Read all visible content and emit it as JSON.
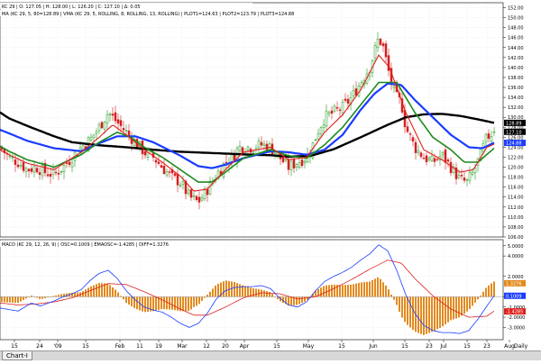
{
  "price_header": "KC 29 | O: 127.05 | H: 128.00 | L: 126.20 | C: 127.10 | Δ: 0.05",
  "ma_header": "MA (KC 29, 5, 80=128.89 | VMA (KC 29, 5, ROLLING, 8, ROLLING, 13, ROLLING) | PLOT1=124.63 | PLOT2=123.79 | PLOT3=124.88",
  "macd_header": "MACD (KC 29, 12, 26, 9) | OSC=0.1009 | EMAOSC=-1.4285 | DIFF=1.3276",
  "daily_label": "Daily",
  "tab_label": "Chart-I",
  "price_axis": {
    "ticks": [
      "152.00",
      "150.00",
      "148.00",
      "146.00",
      "144.00",
      "142.00",
      "140.00",
      "138.00",
      "136.00",
      "134.00",
      "132.00",
      "130.00",
      "128.00",
      "126.00",
      "124.00",
      "122.00",
      "120.00",
      "118.00",
      "116.00",
      "114.00",
      "112.00",
      "110.00",
      "108.00",
      "106.00"
    ],
    "badges": [
      {
        "text": "128.89",
        "color": "#000000"
      },
      {
        "text": "127.10",
        "color": "#000000"
      },
      {
        "text": "124.88",
        "color": "#1a3cff"
      }
    ]
  },
  "macd_axis": {
    "ticks": [
      "5.0000",
      "4.0000",
      "2.0000",
      "0.0000",
      "-1.0000",
      "-2.0000",
      "-3.0000"
    ],
    "badges": [
      {
        "text": "1.3276",
        "color": "#e38a1e"
      },
      {
        "text": "0.1009",
        "color": "#1a3cff"
      },
      {
        "text": "-1.4285",
        "color": "#e0201c"
      }
    ]
  },
  "x_labels": [
    "15",
    "24",
    "'09",
    "15",
    "Feb",
    "11",
    "19",
    "Mar",
    "12",
    "20",
    "Apr",
    "15",
    "May",
    "15",
    "Jun",
    "15",
    "23",
    "Jul",
    "15",
    "23",
    "Aug"
  ],
  "chart_data": [
    {
      "type": "candlestick",
      "ylim": [
        106,
        153
      ],
      "grid": true,
      "colors": {
        "up": "#1e9a1e",
        "down": "#d42020",
        "sma80": "#000000",
        "ma_fast": "#e0201c",
        "ma_mid": "#1e8a1e",
        "ma_slow": "#1a3cff"
      },
      "anchors": {
        "close": [
          [
            0,
            124
          ],
          [
            10,
            122
          ],
          [
            20,
            121
          ],
          [
            30,
            119.5
          ],
          [
            40,
            120
          ],
          [
            50,
            119
          ],
          [
            60,
            118.5
          ],
          [
            70,
            120
          ],
          [
            80,
            122
          ],
          [
            90,
            124
          ],
          [
            100,
            125.5
          ],
          [
            110,
            128
          ],
          [
            120,
            131
          ],
          [
            130,
            129
          ],
          [
            140,
            127
          ],
          [
            150,
            125
          ],
          [
            160,
            123
          ],
          [
            170,
            122
          ],
          [
            180,
            120
          ],
          [
            190,
            118
          ],
          [
            200,
            117
          ],
          [
            210,
            114
          ],
          [
            220,
            113
          ],
          [
            228,
            115
          ],
          [
            235,
            117
          ],
          [
            242,
            119
          ],
          [
            250,
            121
          ],
          [
            258,
            122
          ],
          [
            265,
            124
          ],
          [
            272,
            124
          ],
          [
            280,
            124
          ],
          [
            290,
            124.5
          ],
          [
            300,
            124
          ],
          [
            310,
            122
          ],
          [
            320,
            120
          ],
          [
            330,
            121
          ],
          [
            340,
            122
          ],
          [
            346,
            124
          ],
          [
            352,
            127
          ],
          [
            360,
            130
          ],
          [
            370,
            131
          ],
          [
            380,
            132
          ],
          [
            390,
            134
          ],
          [
            400,
            137
          ],
          [
            410,
            140
          ],
          [
            415,
            143
          ],
          [
            420,
            146
          ],
          [
            425,
            144
          ],
          [
            430,
            140
          ],
          [
            435,
            136
          ],
          [
            440,
            134
          ],
          [
            445,
            133
          ],
          [
            450,
            128
          ],
          [
            455,
            126
          ],
          [
            460,
            124
          ],
          [
            470,
            122
          ],
          [
            480,
            121
          ],
          [
            490,
            122.5
          ],
          [
            500,
            120
          ],
          [
            510,
            117.5
          ],
          [
            518,
            117
          ],
          [
            525,
            119
          ],
          [
            532,
            122
          ],
          [
            540,
            126
          ],
          [
            548,
            127.1
          ]
        ],
        "sma80": [
          [
            0,
            131
          ],
          [
            10,
            129.8
          ],
          [
            30,
            128.3
          ],
          [
            60,
            126.2
          ],
          [
            80,
            125
          ],
          [
            110,
            124.4
          ],
          [
            140,
            124
          ],
          [
            170,
            123.5
          ],
          [
            200,
            123.1
          ],
          [
            240,
            122.8
          ],
          [
            280,
            122.5
          ],
          [
            300,
            122.4
          ],
          [
            320,
            122.1
          ],
          [
            345,
            122.3
          ],
          [
            370,
            123.6
          ],
          [
            400,
            126
          ],
          [
            430,
            128.5
          ],
          [
            450,
            130
          ],
          [
            470,
            130.6
          ],
          [
            490,
            130.7
          ],
          [
            510,
            130.3
          ],
          [
            530,
            129.6
          ],
          [
            548,
            128.9
          ]
        ],
        "ma_fast": [
          [
            0,
            123.5
          ],
          [
            10,
            122.5
          ],
          [
            30,
            120.8
          ],
          [
            60,
            119.5
          ],
          [
            90,
            123
          ],
          [
            110,
            126
          ],
          [
            125,
            128.5
          ],
          [
            140,
            126.5
          ],
          [
            160,
            123.5
          ],
          [
            180,
            121
          ],
          [
            200,
            118.2
          ],
          [
            215,
            115.2
          ],
          [
            230,
            115.6
          ],
          [
            250,
            119.5
          ],
          [
            270,
            123
          ],
          [
            300,
            124
          ],
          [
            320,
            121.5
          ],
          [
            340,
            122
          ],
          [
            360,
            127
          ],
          [
            380,
            130.5
          ],
          [
            400,
            135.5
          ],
          [
            420,
            142.5
          ],
          [
            432,
            140
          ],
          [
            450,
            131
          ],
          [
            470,
            123.5
          ],
          [
            490,
            121.5
          ],
          [
            510,
            119
          ],
          [
            525,
            119.5
          ],
          [
            540,
            124
          ],
          [
            548,
            124.6
          ]
        ],
        "ma_mid": [
          [
            0,
            124.2
          ],
          [
            10,
            123.2
          ],
          [
            30,
            121.5
          ],
          [
            60,
            120
          ],
          [
            90,
            122.5
          ],
          [
            110,
            125
          ],
          [
            130,
            127
          ],
          [
            145,
            126
          ],
          [
            160,
            124
          ],
          [
            180,
            122
          ],
          [
            200,
            119.5
          ],
          [
            220,
            117
          ],
          [
            235,
            117
          ],
          [
            250,
            119
          ],
          [
            270,
            121.8
          ],
          [
            300,
            123.5
          ],
          [
            320,
            122.3
          ],
          [
            340,
            121.8
          ],
          [
            360,
            124.5
          ],
          [
            380,
            128
          ],
          [
            400,
            132.5
          ],
          [
            420,
            137
          ],
          [
            440,
            137
          ],
          [
            460,
            131
          ],
          [
            480,
            126
          ],
          [
            500,
            123.5
          ],
          [
            515,
            121
          ],
          [
            530,
            121
          ],
          [
            548,
            123.8
          ]
        ],
        "ma_slow": [
          [
            0,
            127.5
          ],
          [
            10,
            126.8
          ],
          [
            30,
            125.3
          ],
          [
            60,
            123.8
          ],
          [
            90,
            123.2
          ],
          [
            110,
            124.8
          ],
          [
            130,
            126.2
          ],
          [
            150,
            126.2
          ],
          [
            170,
            125
          ],
          [
            200,
            122.3
          ],
          [
            220,
            120.2
          ],
          [
            235,
            119.8
          ],
          [
            250,
            120.5
          ],
          [
            270,
            121.8
          ],
          [
            300,
            123.2
          ],
          [
            320,
            123
          ],
          [
            340,
            122.5
          ],
          [
            360,
            123.5
          ],
          [
            380,
            126.5
          ],
          [
            400,
            131.5
          ],
          [
            415,
            134.7
          ],
          [
            430,
            136.8
          ],
          [
            445,
            136.5
          ],
          [
            460,
            133.5
          ],
          [
            480,
            130
          ],
          [
            500,
            126.5
          ],
          [
            520,
            124
          ],
          [
            535,
            123.8
          ],
          [
            548,
            124.9
          ]
        ]
      },
      "last": {
        "open": 127.05,
        "high": 128.0,
        "low": 126.2,
        "close": 127.1,
        "change": 0.05
      },
      "overlays": [
        {
          "label": "MA (KC 29, 5, 80)",
          "value": 128.89
        },
        {
          "label": "PLOT1",
          "value": 124.63
        },
        {
          "label": "PLOT2",
          "value": 123.79
        },
        {
          "label": "PLOT3",
          "value": 124.88
        }
      ]
    },
    {
      "type": "macd",
      "ylim": [
        -4.2,
        5.6
      ],
      "colors": {
        "osc": "#1a3cff",
        "ema": "#e0201c",
        "hist": "#e38a1e"
      },
      "osc": [
        [
          0,
          -1.1
        ],
        [
          20,
          -1.4
        ],
        [
          35,
          -0.6
        ],
        [
          45,
          -0.9
        ],
        [
          60,
          -0.4
        ],
        [
          70,
          0.0
        ],
        [
          80,
          0.3
        ],
        [
          90,
          0.7
        ],
        [
          100,
          1.6
        ],
        [
          110,
          2.3
        ],
        [
          120,
          2.6
        ],
        [
          130,
          1.8
        ],
        [
          140,
          0.6
        ],
        [
          150,
          -0.3
        ],
        [
          160,
          -1.0
        ],
        [
          170,
          -1.3
        ],
        [
          180,
          -1.5
        ],
        [
          190,
          -2.0
        ],
        [
          200,
          -2.6
        ],
        [
          210,
          -3.0
        ],
        [
          220,
          -2.6
        ],
        [
          230,
          -1.6
        ],
        [
          240,
          -0.2
        ],
        [
          250,
          0.6
        ],
        [
          260,
          0.9
        ],
        [
          270,
          1.0
        ],
        [
          280,
          1.0
        ],
        [
          290,
          1.1
        ],
        [
          300,
          0.8
        ],
        [
          310,
          -0.1
        ],
        [
          320,
          -0.8
        ],
        [
          330,
          -1.0
        ],
        [
          340,
          -0.5
        ],
        [
          350,
          0.6
        ],
        [
          360,
          1.5
        ],
        [
          370,
          2.0
        ],
        [
          380,
          2.4
        ],
        [
          390,
          2.9
        ],
        [
          400,
          3.6
        ],
        [
          410,
          4.2
        ],
        [
          420,
          5.1
        ],
        [
          430,
          4.5
        ],
        [
          440,
          2.6
        ],
        [
          450,
          0.2
        ],
        [
          460,
          -1.6
        ],
        [
          470,
          -2.8
        ],
        [
          480,
          -3.3
        ],
        [
          490,
          -3.5
        ],
        [
          500,
          -3.5
        ],
        [
          510,
          -3.6
        ],
        [
          520,
          -3.3
        ],
        [
          530,
          -2.2
        ],
        [
          540,
          -0.9
        ],
        [
          548,
          0.1
        ]
      ],
      "ema": [
        [
          0,
          -0.6
        ],
        [
          20,
          -0.8
        ],
        [
          40,
          -0.7
        ],
        [
          60,
          -0.5
        ],
        [
          80,
          -0.1
        ],
        [
          100,
          0.6
        ],
        [
          120,
          1.3
        ],
        [
          140,
          1.2
        ],
        [
          160,
          0.5
        ],
        [
          180,
          -0.3
        ],
        [
          200,
          -1.2
        ],
        [
          215,
          -1.8
        ],
        [
          230,
          -1.8
        ],
        [
          250,
          -1.0
        ],
        [
          270,
          -0.1
        ],
        [
          290,
          0.4
        ],
        [
          310,
          0.3
        ],
        [
          330,
          -0.2
        ],
        [
          350,
          0.0
        ],
        [
          370,
          0.8
        ],
        [
          390,
          1.7
        ],
        [
          410,
          2.7
        ],
        [
          430,
          3.6
        ],
        [
          445,
          3.3
        ],
        [
          460,
          1.8
        ],
        [
          480,
          0.1
        ],
        [
          500,
          -1.2
        ],
        [
          520,
          -2.0
        ],
        [
          540,
          -1.9
        ],
        [
          548,
          -1.4
        ]
      ]
    }
  ]
}
